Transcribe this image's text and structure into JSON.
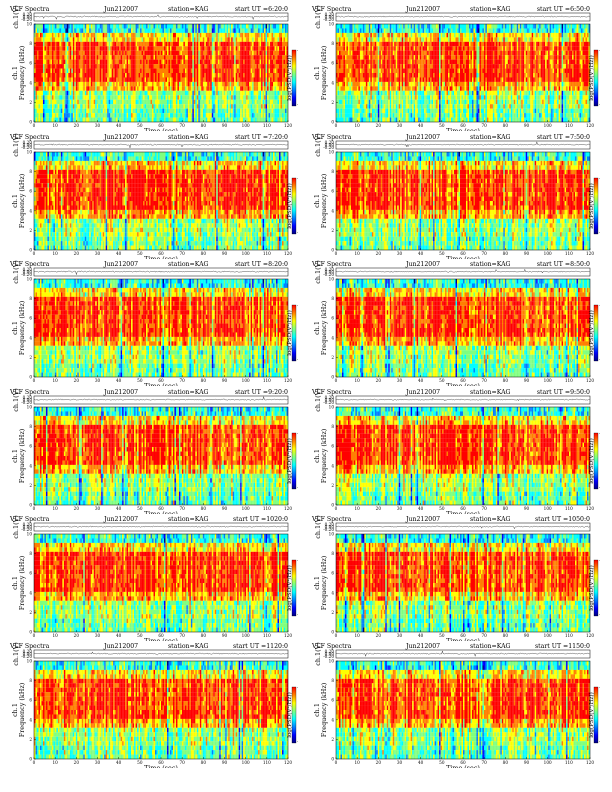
{
  "chart_data": [
    {
      "type": "heatmap",
      "row": 0,
      "col": 0,
      "title": "VLF Spectra",
      "date": "Jun212007",
      "station": "station=KAG",
      "start": "start  UT =6:20:0",
      "trace_label": "ch.1(V)",
      "trace_ticks": [
        "0.20",
        "0.00",
        "-0.20"
      ],
      "ylabel": "ch.1\nFrequency  (kHz)",
      "ylim": [
        0,
        10
      ],
      "yticks": [
        "0",
        "2",
        "4",
        "6",
        "8",
        "10"
      ],
      "xlabel": "Time  (sec)",
      "xlim": [
        0,
        120
      ],
      "xticks": [
        "0",
        "10",
        "20",
        "30",
        "40",
        "50",
        "60",
        "70",
        "80",
        "90",
        "100",
        "110",
        "120"
      ],
      "colorbar_label": "log(PSD(V²/Hz))",
      "colorbar_ticks": [
        "-",
        "-"
      ]
    },
    {
      "type": "heatmap",
      "row": 0,
      "col": 1,
      "title": "VLF Spectra",
      "date": "Jun212007",
      "station": "station=KAG",
      "start": "start  UT =6:50:0",
      "trace_label": "ch.1(V)",
      "trace_ticks": [
        "0.20",
        "0.00",
        "-0.20"
      ],
      "ylabel": "ch.1\nFrequency  (kHz)",
      "ylim": [
        0,
        10
      ],
      "yticks": [
        "0",
        "2",
        "4",
        "6",
        "8",
        "10"
      ],
      "xlabel": "Time  (sec)",
      "xlim": [
        0,
        120
      ],
      "xticks": [
        "0",
        "10",
        "20",
        "30",
        "40",
        "50",
        "60",
        "70",
        "80",
        "90",
        "100",
        "110",
        "120"
      ],
      "colorbar_label": "log(PSD(V²/Hz))",
      "colorbar_ticks": [
        "-",
        "-"
      ]
    },
    {
      "type": "heatmap",
      "row": 1,
      "col": 0,
      "title": "VLF Spectra",
      "date": "Jun212007",
      "station": "station=KAG",
      "start": "start  UT =7:20:0",
      "trace_label": "ch.1(V)",
      "trace_ticks": [
        "0.20",
        "0.00",
        "-0.20"
      ],
      "ylabel": "ch.1\nFrequency  (kHz)",
      "ylim": [
        0,
        10
      ],
      "yticks": [
        "0",
        "2",
        "4",
        "6",
        "8",
        "10"
      ],
      "xlabel": "Time  (sec)",
      "xlim": [
        0,
        120
      ],
      "xticks": [
        "0",
        "10",
        "20",
        "30",
        "40",
        "50",
        "60",
        "70",
        "80",
        "90",
        "100",
        "110",
        "120"
      ],
      "colorbar_label": "log(PSD(V²/Hz))",
      "colorbar_ticks": [
        "-",
        "-"
      ]
    },
    {
      "type": "heatmap",
      "row": 1,
      "col": 1,
      "title": "VLF Spectra",
      "date": "Jun212007",
      "station": "station=KAG",
      "start": "start  UT =7:50:0",
      "trace_label": "ch.1(V)",
      "trace_ticks": [
        "0.20",
        "0.00",
        "-0.20"
      ],
      "ylabel": "ch.1\nFrequency  (kHz)",
      "ylim": [
        0,
        10
      ],
      "yticks": [
        "0",
        "2",
        "4",
        "6",
        "8",
        "10"
      ],
      "xlabel": "Time  (sec)",
      "xlim": [
        0,
        120
      ],
      "xticks": [
        "0",
        "10",
        "20",
        "30",
        "40",
        "50",
        "60",
        "70",
        "80",
        "90",
        "100",
        "110",
        "120"
      ],
      "colorbar_label": "log(PSD(V²/Hz))",
      "colorbar_ticks": [
        "-",
        "-"
      ]
    },
    {
      "type": "heatmap",
      "row": 2,
      "col": 0,
      "title": "VLF Spectra",
      "date": "Jun212007",
      "station": "station=KAG",
      "start": "start  UT =8:20:0",
      "trace_label": "ch.1(V)",
      "trace_ticks": [
        "0.20",
        "0.00",
        "-0.20"
      ],
      "ylabel": "ch.1\nFrequency  (kHz)",
      "ylim": [
        0,
        10
      ],
      "yticks": [
        "0",
        "2",
        "4",
        "6",
        "8",
        "10"
      ],
      "xlabel": "Time  (sec)",
      "xlim": [
        0,
        120
      ],
      "xticks": [
        "0",
        "10",
        "20",
        "30",
        "40",
        "50",
        "60",
        "70",
        "80",
        "90",
        "100",
        "110",
        "120"
      ],
      "colorbar_label": "log(PSD(V²/Hz))",
      "colorbar_ticks": [
        "-",
        "-"
      ]
    },
    {
      "type": "heatmap",
      "row": 2,
      "col": 1,
      "title": "VLF Spectra",
      "date": "Jun212007",
      "station": "station=KAG",
      "start": "start  UT =8:50:0",
      "trace_label": "ch.1(V)",
      "trace_ticks": [
        "0.20",
        "0.00",
        "-0.20"
      ],
      "ylabel": "ch.1\nFrequency  (kHz)",
      "ylim": [
        0,
        10
      ],
      "yticks": [
        "0",
        "2",
        "4",
        "6",
        "8",
        "10"
      ],
      "xlabel": "Time  (sec)",
      "xlim": [
        0,
        120
      ],
      "xticks": [
        "0",
        "10",
        "20",
        "30",
        "40",
        "50",
        "60",
        "70",
        "80",
        "90",
        "100",
        "110",
        "120"
      ],
      "colorbar_label": "log(PSD(V²/Hz))",
      "colorbar_ticks": [
        "-",
        "-"
      ]
    },
    {
      "type": "heatmap",
      "row": 3,
      "col": 0,
      "title": "VLF Spectra",
      "date": "Jun212007",
      "station": "station=KAG",
      "start": "start  UT =9:20:0",
      "trace_label": "ch.1(V)",
      "trace_ticks": [
        "0.20",
        "0.00",
        "-0.20"
      ],
      "ylabel": "ch.1\nFrequency  (kHz)",
      "ylim": [
        0,
        10
      ],
      "yticks": [
        "0",
        "2",
        "4",
        "6",
        "8",
        "10"
      ],
      "xlabel": "Time  (sec)",
      "xlim": [
        0,
        120
      ],
      "xticks": [
        "0",
        "10",
        "20",
        "30",
        "40",
        "50",
        "60",
        "70",
        "80",
        "90",
        "100",
        "110",
        "120"
      ],
      "colorbar_label": "log(PSD(V²/Hz))",
      "colorbar_ticks": [
        "-",
        "-"
      ]
    },
    {
      "type": "heatmap",
      "row": 3,
      "col": 1,
      "title": "VLF Spectra",
      "date": "Jun212007",
      "station": "station=KAG",
      "start": "start  UT =9:50:0",
      "trace_label": "ch.1(V)",
      "trace_ticks": [
        "0.20",
        "0.00",
        "-0.20"
      ],
      "ylabel": "ch.1\nFrequency  (kHz)",
      "ylim": [
        0,
        10
      ],
      "yticks": [
        "0",
        "2",
        "4",
        "6",
        "8",
        "10"
      ],
      "xlabel": "Time  (sec)",
      "xlim": [
        0,
        120
      ],
      "xticks": [
        "0",
        "10",
        "20",
        "30",
        "40",
        "50",
        "60",
        "70",
        "80",
        "90",
        "100",
        "110",
        "120"
      ],
      "colorbar_label": "log(PSD(V²/Hz))",
      "colorbar_ticks": [
        "-",
        "-"
      ]
    },
    {
      "type": "heatmap",
      "row": 4,
      "col": 0,
      "title": "VLF Spectra",
      "date": "Jun212007",
      "station": "station=KAG",
      "start": "start  UT =1020:0",
      "trace_label": "ch.1(V)",
      "trace_ticks": [
        "0.20",
        "0.00",
        "-0.20"
      ],
      "ylabel": "ch.1\nFrequency  (kHz)",
      "ylim": [
        0,
        10
      ],
      "yticks": [
        "0",
        "2",
        "4",
        "6",
        "8",
        "10"
      ],
      "xlabel": "Time  (sec)",
      "xlim": [
        0,
        120
      ],
      "xticks": [
        "0",
        "10",
        "20",
        "30",
        "40",
        "50",
        "60",
        "70",
        "80",
        "90",
        "100",
        "110",
        "120"
      ],
      "colorbar_label": "log(PSD(V²/Hz))",
      "colorbar_ticks": [
        "-",
        "-"
      ]
    },
    {
      "type": "heatmap",
      "row": 4,
      "col": 1,
      "title": "VLF Spectra",
      "date": "Jun212007",
      "station": "station=KAG",
      "start": "start  UT =1050:0",
      "trace_label": "ch.1(V)",
      "trace_ticks": [
        "0.20",
        "0.00",
        "-0.20"
      ],
      "ylabel": "ch.1\nFrequency  (kHz)",
      "ylim": [
        0,
        10
      ],
      "yticks": [
        "0",
        "2",
        "4",
        "6",
        "8",
        "10"
      ],
      "xlabel": "Time  (sec)",
      "xlim": [
        0,
        120
      ],
      "xticks": [
        "0",
        "10",
        "20",
        "30",
        "40",
        "50",
        "60",
        "70",
        "80",
        "90",
        "100",
        "110",
        "120"
      ],
      "colorbar_label": "log(PSD(V²/Hz))",
      "colorbar_ticks": [
        "-",
        "-"
      ]
    },
    {
      "type": "heatmap",
      "row": 5,
      "col": 0,
      "title": "VLF Spectra",
      "date": "Jun212007",
      "station": "station=KAG",
      "start": "start  UT =1120:0",
      "trace_label": "ch.1(V)",
      "trace_ticks": [
        "0.20",
        "0.00",
        "-0.20"
      ],
      "ylabel": "ch.1\nFrequency  (kHz)",
      "ylim": [
        0,
        10
      ],
      "yticks": [
        "0",
        "2",
        "4",
        "6",
        "8",
        "10"
      ],
      "xlabel": "Time  (sec)",
      "xlim": [
        0,
        120
      ],
      "xticks": [
        "0",
        "10",
        "20",
        "30",
        "40",
        "50",
        "60",
        "70",
        "80",
        "90",
        "100",
        "110",
        "120"
      ],
      "colorbar_label": "log(PSD(V²/Hz))",
      "colorbar_ticks": [
        "-",
        "-"
      ]
    },
    {
      "type": "heatmap",
      "row": 5,
      "col": 1,
      "title": "VLF Spectra",
      "date": "Jun212007",
      "station": "station=KAG",
      "start": "start  UT =1150:0",
      "trace_label": "ch.1(V)",
      "trace_ticks": [
        "0.20",
        "0.00",
        "-0.20"
      ],
      "ylabel": "ch.1\nFrequency  (kHz)",
      "ylim": [
        0,
        10
      ],
      "yticks": [
        "0",
        "2",
        "4",
        "6",
        "8",
        "10"
      ],
      "xlabel": "Time  (sec)",
      "xlim": [
        0,
        120
      ],
      "xticks": [
        "0",
        "10",
        "20",
        "30",
        "40",
        "50",
        "60",
        "70",
        "80",
        "90",
        "100",
        "110",
        "120"
      ],
      "colorbar_label": "log(PSD(V²/Hz))",
      "colorbar_ticks": [
        "-",
        "-"
      ]
    }
  ]
}
